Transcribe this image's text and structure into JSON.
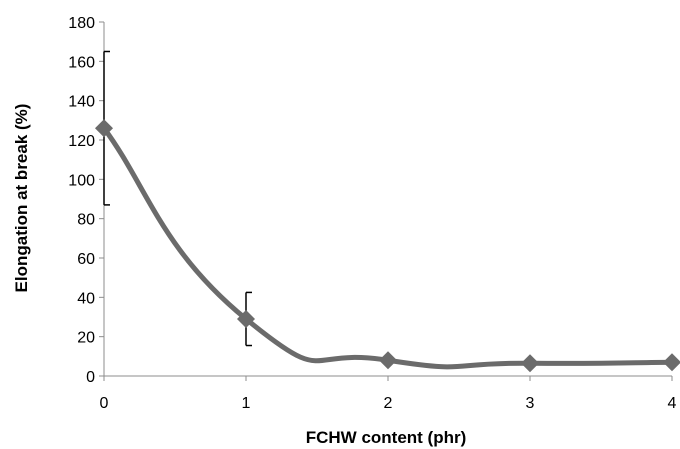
{
  "chart_data": {
    "type": "line",
    "title": "",
    "xlabel": "FCHW content (phr)",
    "ylabel": "Elongation at break (%)",
    "x": [
      0,
      1,
      2,
      3,
      4
    ],
    "xlim": [
      0,
      4
    ],
    "ylim": [
      0,
      180
    ],
    "x_ticks": [
      0,
      1,
      2,
      3,
      4
    ],
    "y_ticks": [
      0,
      20,
      40,
      60,
      80,
      100,
      120,
      140,
      160,
      180
    ],
    "grid": false,
    "legend": "none",
    "smooth": true,
    "series": [
      {
        "values": [
          126,
          29,
          8,
          6.5,
          7
        ],
        "error": [
          39,
          13.5,
          0,
          0,
          0
        ],
        "color": "#6b6b6b",
        "marker": "diamond"
      }
    ]
  }
}
